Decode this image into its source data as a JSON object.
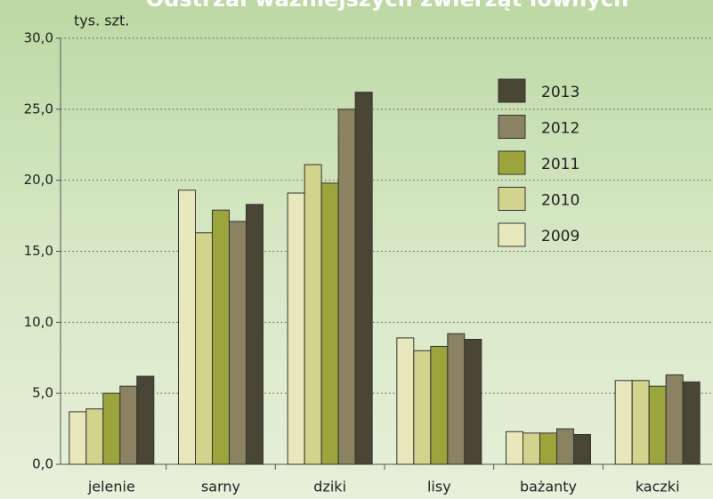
{
  "chart_data": {
    "type": "bar",
    "title": "Odstrzał ważniejszych zwierząt łownych",
    "y_label": "tys. szt.",
    "categories": [
      "jelenie",
      "sarny",
      "dziki",
      "lisy",
      "bażanty",
      "kaczki"
    ],
    "series": [
      {
        "name": "2009",
        "color": "#e8e8bc",
        "values": [
          3.7,
          19.3,
          19.1,
          8.9,
          2.3,
          5.9
        ]
      },
      {
        "name": "2010",
        "color": "#d2d38c",
        "values": [
          3.9,
          16.3,
          21.1,
          8.0,
          2.2,
          5.9
        ]
      },
      {
        "name": "2011",
        "color": "#9ca53c",
        "values": [
          5.0,
          17.9,
          19.8,
          8.3,
          2.2,
          5.5
        ]
      },
      {
        "name": "2012",
        "color": "#8b8262",
        "values": [
          5.5,
          17.1,
          25.0,
          9.2,
          2.5,
          6.3
        ]
      },
      {
        "name": "2013",
        "color": "#4a4636",
        "values": [
          6.2,
          18.3,
          26.2,
          8.8,
          2.1,
          5.8
        ]
      }
    ],
    "ylim": [
      0,
      30
    ],
    "yticks": [
      {
        "value": 0,
        "label": "0,0"
      },
      {
        "value": 5,
        "label": "5,0"
      },
      {
        "value": 10,
        "label": "10,0"
      },
      {
        "value": 15,
        "label": "15,0"
      },
      {
        "value": 20,
        "label": "20,0"
      },
      {
        "value": 25,
        "label": "25,0"
      },
      {
        "value": 30,
        "label": "30,0"
      }
    ],
    "grid": true
  }
}
